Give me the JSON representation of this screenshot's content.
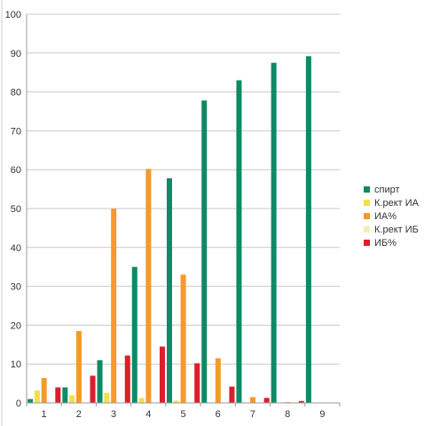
{
  "chart_data": {
    "type": "bar",
    "title": "",
    "xlabel": "",
    "ylabel": "",
    "categories": [
      "1",
      "2",
      "3",
      "4",
      "5",
      "6",
      "7",
      "8",
      "9"
    ],
    "ylim": [
      0,
      100
    ],
    "yticks": [
      0,
      10,
      20,
      30,
      40,
      50,
      60,
      70,
      80,
      90,
      100
    ],
    "grid": true,
    "legend_position": "right",
    "series": [
      {
        "name": "спирт",
        "color": "#0e8a66",
        "values": [
          1,
          4,
          11,
          35,
          57.8,
          77.8,
          83,
          87.5,
          89.2
        ]
      },
      {
        "name": "К.рект ИА",
        "color": "#f2e04a",
        "values": [
          3.2,
          2,
          2.6,
          1.3,
          0.6,
          0,
          0,
          0,
          0
        ]
      },
      {
        "name": "ИА%",
        "color": "#f59a2a",
        "values": [
          6.4,
          18.5,
          50,
          60.2,
          33,
          11.5,
          1.5,
          0.2,
          0
        ]
      },
      {
        "name": "К.рект ИБ",
        "color": "#f5f0b0",
        "values": [
          0,
          0,
          0,
          0,
          0,
          0,
          0,
          0,
          0
        ]
      },
      {
        "name": "ИБ%",
        "color": "#dd1e2b",
        "values": [
          4,
          7,
          12.2,
          14.5,
          10.2,
          4.2,
          1.3,
          0.5,
          0
        ]
      }
    ]
  }
}
